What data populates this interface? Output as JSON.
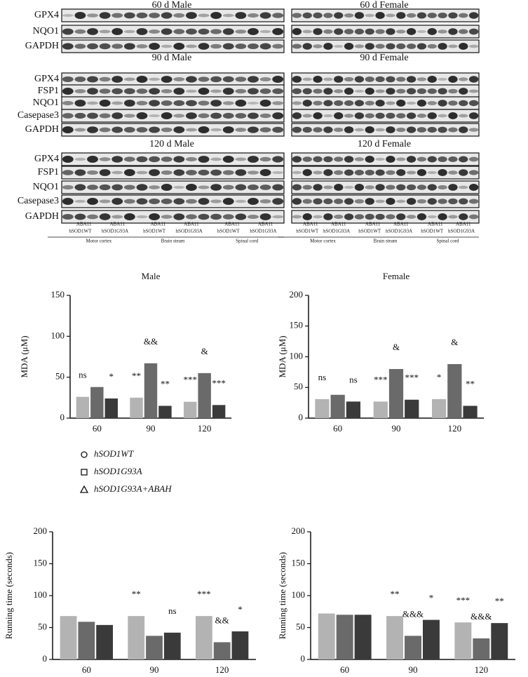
{
  "blots": {
    "left": [
      {
        "title": "60 d Male",
        "rows": [
          "GPX4",
          "NQO1",
          "GAPDH"
        ]
      },
      {
        "title": "90 d Male",
        "rows": [
          "GPX4",
          "FSP1",
          "NQO1",
          "Casepase3",
          "GAPDH"
        ]
      },
      {
        "title": "120 d Male",
        "rows": [
          "GPX4",
          "FSP1",
          "NQO1",
          "Casepase3",
          "GAPDH"
        ]
      }
    ],
    "right": [
      "60 d Female",
      "90 d Female",
      "120 d Female"
    ],
    "lanes": [
      "ABA11",
      "hSOD1WT",
      "hSOD1G93A"
    ],
    "tissues": [
      "Motor cortex",
      "Brain steam",
      "Spinal cord"
    ]
  },
  "chart_data": [
    {
      "type": "bar",
      "title": "Male",
      "y_label": "MDA (μM)",
      "categories": [
        "60",
        "90",
        "120"
      ],
      "ylim": [
        0,
        150
      ],
      "yticks": [
        0,
        50,
        100,
        150
      ],
      "series": [
        {
          "name": "hSOD1WT",
          "color": "#b3b3b3",
          "marker": "circle",
          "values": [
            26,
            25,
            20
          ],
          "annotations": [
            "ns",
            "**",
            "***"
          ]
        },
        {
          "name": "hSOD1G93A",
          "color": "#6a6a6a",
          "marker": "square",
          "values": [
            38,
            67,
            55
          ],
          "annotations": [
            null,
            "&&",
            "&"
          ]
        },
        {
          "name": "hSOD1G93A+ABAH",
          "color": "#3a3a3a",
          "marker": "triangle",
          "values": [
            24,
            15,
            16
          ],
          "annotations": [
            "*",
            "**",
            "***"
          ]
        }
      ]
    },
    {
      "type": "bar",
      "title": "Female",
      "y_label": "MDA (μM)",
      "categories": [
        "60",
        "90",
        "120"
      ],
      "ylim": [
        0,
        200
      ],
      "yticks": [
        0,
        50,
        100,
        150,
        200
      ],
      "series": [
        {
          "name": "hSOD1WT",
          "color": "#b3b3b3",
          "values": [
            31,
            27,
            31
          ],
          "annotations": [
            "ns",
            "***",
            "*"
          ]
        },
        {
          "name": "hSOD1G93A",
          "color": "#6a6a6a",
          "values": [
            38,
            80,
            88
          ],
          "annotations": [
            null,
            "&",
            "&"
          ]
        },
        {
          "name": "hSOD1G93A+ABAH",
          "color": "#3a3a3a",
          "values": [
            27,
            30,
            20
          ],
          "annotations": [
            "ns",
            "***",
            "**"
          ]
        }
      ]
    },
    {
      "type": "bar",
      "y_label": "Running time (seconds)",
      "categories": [
        "60",
        "90",
        "120"
      ],
      "ylim": [
        0,
        200
      ],
      "yticks": [
        0,
        50,
        100,
        150,
        200
      ],
      "series": [
        {
          "name": "hSOD1WT",
          "color": "#b3b3b3",
          "values": [
            68,
            68,
            68
          ],
          "annotations": [
            null,
            "**",
            "***"
          ]
        },
        {
          "name": "hSOD1G93A",
          "color": "#6a6a6a",
          "values": [
            59,
            37,
            27
          ],
          "annotations": [
            null,
            null,
            "&&"
          ]
        },
        {
          "name": "hSOD1G93A+ABAH",
          "color": "#3a3a3a",
          "values": [
            54,
            42,
            44
          ],
          "annotations": [
            null,
            "ns",
            "*"
          ]
        }
      ]
    },
    {
      "type": "bar",
      "y_label": "Running time (seconds)",
      "categories": [
        "60",
        "90",
        "120"
      ],
      "ylim": [
        0,
        200
      ],
      "yticks": [
        0,
        50,
        100,
        150,
        200
      ],
      "series": [
        {
          "name": "hSOD1WT",
          "color": "#b3b3b3",
          "values": [
            72,
            68,
            58
          ],
          "annotations": [
            null,
            "**",
            "***"
          ]
        },
        {
          "name": "hSOD1G93A",
          "color": "#6a6a6a",
          "values": [
            70,
            37,
            33
          ],
          "annotations": [
            null,
            "&&&",
            "&&&"
          ]
        },
        {
          "name": "hSOD1G93A+ABAH",
          "color": "#3a3a3a",
          "values": [
            70,
            62,
            57
          ],
          "annotations": [
            null,
            "*",
            "**"
          ]
        }
      ]
    }
  ]
}
